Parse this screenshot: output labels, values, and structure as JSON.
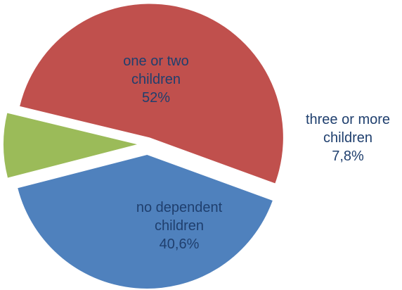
{
  "chart_data": {
    "type": "pie",
    "exploded": true,
    "slices": [
      {
        "label_lines": [
          "one or two",
          "children"
        ],
        "value": 52,
        "value_label": "52%",
        "color": "#c0504d",
        "label_color": "#1f3f6e"
      },
      {
        "label_lines": [
          "three or more",
          "children"
        ],
        "value": 7.8,
        "value_label": "7,8%",
        "color": "#9bbb59",
        "label_color": "#1f3f6e"
      },
      {
        "label_lines": [
          "no dependent",
          "children"
        ],
        "value": 40.6,
        "value_label": "40,6%",
        "color": "#4f81bd",
        "label_color": "#1f3f6e"
      }
    ]
  }
}
